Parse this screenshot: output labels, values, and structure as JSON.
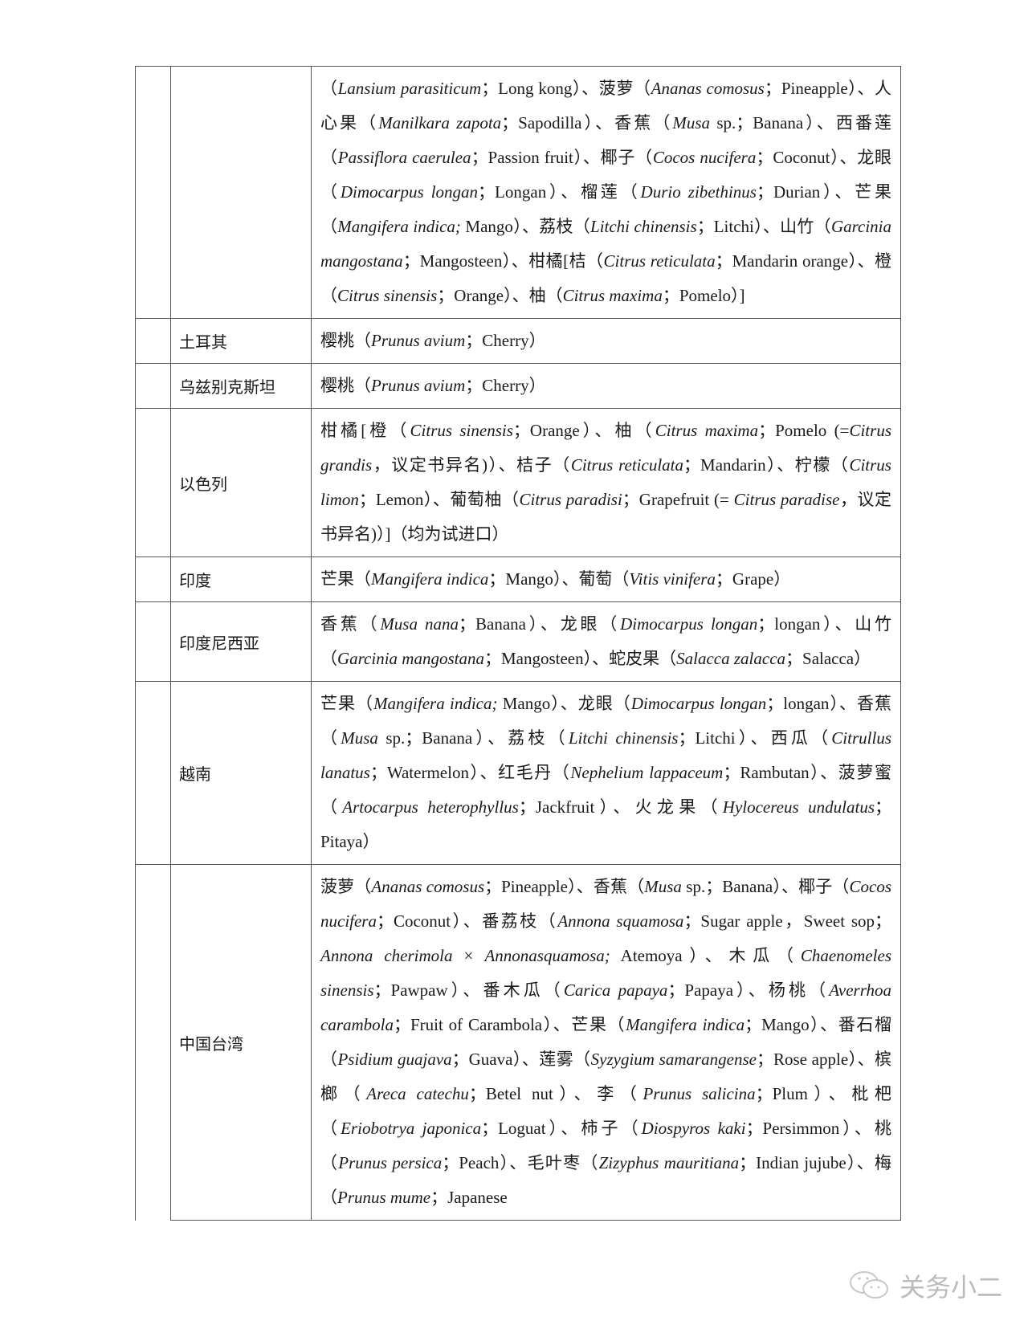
{
  "rows": [
    {
      "country": "",
      "content": [
        {
          "t": "（"
        },
        {
          "t": "Lansium parasiticum",
          "i": 1
        },
        {
          "t": "；Long kong）、菠萝（"
        },
        {
          "t": "Ananas comosus",
          "i": 1
        },
        {
          "t": "；Pineapple）、人心果（"
        },
        {
          "t": "Manilkara zapota",
          "i": 1
        },
        {
          "t": "；Sapodilla）、香蕉（"
        },
        {
          "t": "Musa",
          "i": 1
        },
        {
          "t": " sp.；Banana）、西番莲（"
        },
        {
          "t": "Passiflora caerulea",
          "i": 1
        },
        {
          "t": "；Passion fruit）、椰子（"
        },
        {
          "t": "Cocos nucifera",
          "i": 1
        },
        {
          "t": "；Coconut）、龙眼（"
        },
        {
          "t": "Dimocarpus longan",
          "i": 1
        },
        {
          "t": "；Longan）、榴莲（"
        },
        {
          "t": "Durio zibethinus",
          "i": 1
        },
        {
          "t": "；Durian）、芒果（"
        },
        {
          "t": "Mangifera indica;",
          "i": 1
        },
        {
          "t": " Mango）、荔枝（"
        },
        {
          "t": "Litchi chinensis",
          "i": 1
        },
        {
          "t": "；Litchi）、山竹（"
        },
        {
          "t": "Garcinia mangostana",
          "i": 1
        },
        {
          "t": "；Mangosteen）、柑橘[桔（"
        },
        {
          "t": "Citrus reticulata",
          "i": 1
        },
        {
          "t": "；Mandarin orange）、橙（"
        },
        {
          "t": "Citrus sinensis",
          "i": 1
        },
        {
          "t": "；Orange）、柚（"
        },
        {
          "t": "Citrus maxima",
          "i": 1
        },
        {
          "t": "；Pomelo）]"
        }
      ]
    },
    {
      "country": "土耳其",
      "content": [
        {
          "t": "樱桃（"
        },
        {
          "t": "Prunus avium",
          "i": 1
        },
        {
          "t": "；Cherry）"
        }
      ]
    },
    {
      "country": "乌兹别克斯坦",
      "content": [
        {
          "t": "樱桃（"
        },
        {
          "t": "Prunus avium",
          "i": 1
        },
        {
          "t": "；Cherry）"
        }
      ]
    },
    {
      "country": "以色列",
      "content": [
        {
          "t": "柑橘[橙（"
        },
        {
          "t": "Citrus sinensis",
          "i": 1
        },
        {
          "t": "；Orange）、柚（"
        },
        {
          "t": "Citrus maxima",
          "i": 1
        },
        {
          "t": "；Pomelo (="
        },
        {
          "t": "Citrus grandis",
          "i": 1
        },
        {
          "t": "，议定书异名)）、桔子（"
        },
        {
          "t": "Citrus reticulata",
          "i": 1
        },
        {
          "t": "；Mandarin）、柠檬（"
        },
        {
          "t": "Citrus limon",
          "i": 1
        },
        {
          "t": "；Lemon）、葡萄柚（"
        },
        {
          "t": "Citrus paradisi",
          "i": 1
        },
        {
          "t": "；Grapefruit (= "
        },
        {
          "t": "Citrus paradise",
          "i": 1
        },
        {
          "t": "，议定书异名)）]（均为试进口）"
        }
      ]
    },
    {
      "country": "印度",
      "content": [
        {
          "t": "芒果（"
        },
        {
          "t": "Mangifera indica",
          "i": 1
        },
        {
          "t": "；Mango）、葡萄（"
        },
        {
          "t": "Vitis vinifera",
          "i": 1
        },
        {
          "t": "；Grape）"
        }
      ]
    },
    {
      "country": "印度尼西亚",
      "content": [
        {
          "t": "香蕉（"
        },
        {
          "t": "Musa nana",
          "i": 1
        },
        {
          "t": "；Banana）、龙眼（"
        },
        {
          "t": "Dimocarpus longan",
          "i": 1
        },
        {
          "t": "；longan）、山竹（"
        },
        {
          "t": "Garcinia mangostana",
          "i": 1
        },
        {
          "t": "；Mangosteen）、蛇皮果（"
        },
        {
          "t": "Salacca zalacca",
          "i": 1
        },
        {
          "t": "；Salacca）"
        }
      ]
    },
    {
      "country": "越南",
      "content": [
        {
          "t": "芒果（"
        },
        {
          "t": "Mangifera indica;",
          "i": 1
        },
        {
          "t": " Mango）、龙眼（"
        },
        {
          "t": "Dimocarpus longan",
          "i": 1
        },
        {
          "t": "；longan）、香蕉（"
        },
        {
          "t": "Musa",
          "i": 1
        },
        {
          "t": " sp.；Banana）、荔枝（"
        },
        {
          "t": "Litchi chinensis",
          "i": 1
        },
        {
          "t": "；Litchi）、西瓜（"
        },
        {
          "t": "Citrullus lanatus",
          "i": 1
        },
        {
          "t": "；Watermelon）、红毛丹（"
        },
        {
          "t": "Nephelium lappaceum",
          "i": 1
        },
        {
          "t": "；Rambutan）、菠萝蜜（"
        },
        {
          "t": "Artocarpus heterophyllus",
          "i": 1
        },
        {
          "t": "；Jackfruit）、火龙果（"
        },
        {
          "t": "Hylocereus undulatus",
          "i": 1
        },
        {
          "t": "；Pitaya）"
        }
      ]
    },
    {
      "country": "中国台湾",
      "content": [
        {
          "t": "菠萝（"
        },
        {
          "t": "Ananas comosus",
          "i": 1
        },
        {
          "t": "；Pineapple）、香蕉（"
        },
        {
          "t": "Musa",
          "i": 1
        },
        {
          "t": " sp.；Banana）、椰子（"
        },
        {
          "t": "Cocos nucifera",
          "i": 1
        },
        {
          "t": "；Coconut）、番荔枝（"
        },
        {
          "t": "Annona squamosa",
          "i": 1
        },
        {
          "t": "；Sugar apple，Sweet sop；"
        },
        {
          "t": "Annona cherimola",
          "i": 1
        },
        {
          "t": " × "
        },
        {
          "t": "Annonasquamosa;",
          "i": 1
        },
        {
          "t": " Atemoya）、木瓜（"
        },
        {
          "t": "Chaenomeles sinensis",
          "i": 1
        },
        {
          "t": "；Pawpaw）、番木瓜（"
        },
        {
          "t": "Carica papaya",
          "i": 1
        },
        {
          "t": "；Papaya）、杨桃（"
        },
        {
          "t": "Averrhoa carambola",
          "i": 1
        },
        {
          "t": "；Fruit of Carambola）、芒果（"
        },
        {
          "t": "Mangifera indica",
          "i": 1
        },
        {
          "t": "；Mango）、番石榴（"
        },
        {
          "t": "Psidium guajava",
          "i": 1
        },
        {
          "t": "；Guava）、莲雾（"
        },
        {
          "t": "Syzygium samarangense",
          "i": 1
        },
        {
          "t": "；Rose apple）、槟榔（"
        },
        {
          "t": "Areca catechu",
          "i": 1
        },
        {
          "t": "；Betel nut）、李（"
        },
        {
          "t": "Prunus salicina",
          "i": 1
        },
        {
          "t": "；Plum）、枇杷（"
        },
        {
          "t": "Eriobotrya japonica",
          "i": 1
        },
        {
          "t": "；Loguat）、柿子（"
        },
        {
          "t": "Diospyros kaki",
          "i": 1
        },
        {
          "t": "；Persimmon）、桃（"
        },
        {
          "t": "Prunus persica",
          "i": 1
        },
        {
          "t": "；Peach）、毛叶枣（"
        },
        {
          "t": "Zizyphus mauritiana",
          "i": 1
        },
        {
          "t": "；Indian jujube）、梅（"
        },
        {
          "t": "Prunus mume",
          "i": 1
        },
        {
          "t": "；Japanese"
        }
      ]
    }
  ],
  "watermark": {
    "text": "关务小二",
    "icon": "wechat-icon"
  }
}
